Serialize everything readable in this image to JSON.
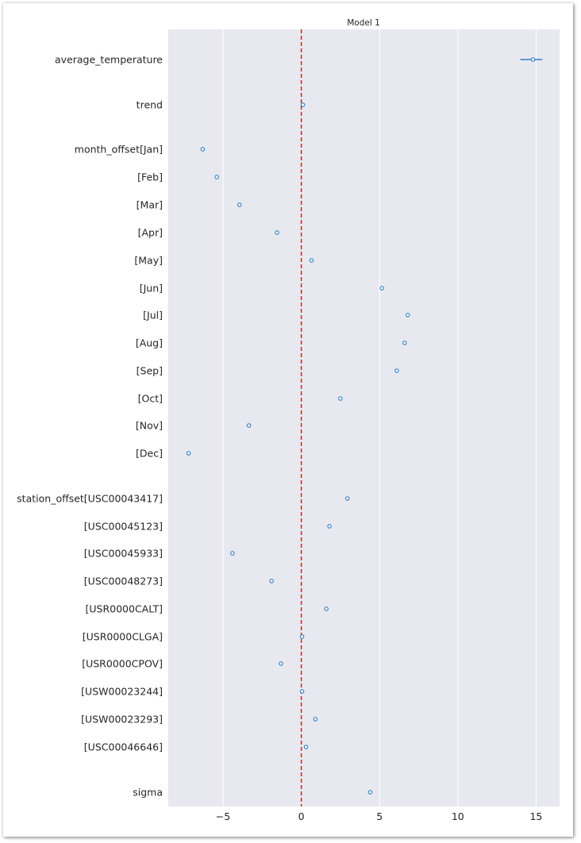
{
  "chart_data": {
    "type": "forest",
    "title": "Model 1",
    "xlabel": "",
    "ylabel": "",
    "xlim": [
      -8.5,
      16.5
    ],
    "xticks": [
      -5,
      0,
      5,
      10,
      15
    ],
    "xtick_labels": [
      "−5",
      "0",
      "5",
      "10",
      "15"
    ],
    "reference_line": {
      "x": 0,
      "style": "dashed",
      "color": "#e8191f"
    },
    "grid": "vertical",
    "background": "#e8e8f0",
    "marker_color": "#2f7fc1",
    "rows": [
      {
        "label": "average_temperature",
        "value": 14.8,
        "ci": [
          14.0,
          15.4
        ]
      },
      {
        "label": "trend",
        "value": 0.1,
        "ci": [
          0.05,
          0.15
        ]
      },
      {
        "label": "month_offset[Jan]",
        "value": -6.3,
        "ci": [
          -6.35,
          -6.25
        ]
      },
      {
        "label": "[Feb]",
        "value": -5.4,
        "ci": [
          -5.45,
          -5.35
        ]
      },
      {
        "label": "[Mar]",
        "value": -3.95,
        "ci": [
          -4.0,
          -3.9
        ]
      },
      {
        "label": "[Apr]",
        "value": -1.55,
        "ci": [
          -1.6,
          -1.5
        ]
      },
      {
        "label": "[May]",
        "value": 0.65,
        "ci": [
          0.6,
          0.7
        ]
      },
      {
        "label": "[Jun]",
        "value": 5.15,
        "ci": [
          5.1,
          5.2
        ]
      },
      {
        "label": "[Jul]",
        "value": 6.8,
        "ci": [
          6.75,
          6.85
        ]
      },
      {
        "label": "[Aug]",
        "value": 6.6,
        "ci": [
          6.55,
          6.65
        ]
      },
      {
        "label": "[Sep]",
        "value": 6.1,
        "ci": [
          6.05,
          6.15
        ]
      },
      {
        "label": "[Oct]",
        "value": 2.5,
        "ci": [
          2.45,
          2.55
        ]
      },
      {
        "label": "[Nov]",
        "value": -3.35,
        "ci": [
          -3.4,
          -3.3
        ]
      },
      {
        "label": "[Dec]",
        "value": -7.2,
        "ci": [
          -7.25,
          -7.15
        ]
      },
      {
        "label": "station_offset[USC00043417]",
        "value": 2.95,
        "ci": [
          2.9,
          3.0
        ]
      },
      {
        "label": "[USC00045123]",
        "value": 1.8,
        "ci": [
          1.75,
          1.85
        ]
      },
      {
        "label": "[USC00045933]",
        "value": -4.4,
        "ci": [
          -4.45,
          -4.35
        ]
      },
      {
        "label": "[USC00048273]",
        "value": -1.9,
        "ci": [
          -1.95,
          -1.85
        ]
      },
      {
        "label": "[USR0000CALT]",
        "value": 1.6,
        "ci": [
          1.55,
          1.65
        ]
      },
      {
        "label": "[USR0000CLGA]",
        "value": 0.05,
        "ci": [
          0.0,
          0.1
        ]
      },
      {
        "label": "[USR0000CPOV]",
        "value": -1.3,
        "ci": [
          -1.35,
          -1.25
        ]
      },
      {
        "label": "[USW00023244]",
        "value": 0.05,
        "ci": [
          0.0,
          0.1
        ]
      },
      {
        "label": "[USW00023293]",
        "value": 0.9,
        "ci": [
          0.85,
          0.95
        ]
      },
      {
        "label": "[USC00046646]",
        "value": 0.3,
        "ci": [
          0.25,
          0.35
        ]
      },
      {
        "label": "sigma",
        "value": 4.4,
        "ci": [
          4.35,
          4.45
        ]
      }
    ]
  }
}
